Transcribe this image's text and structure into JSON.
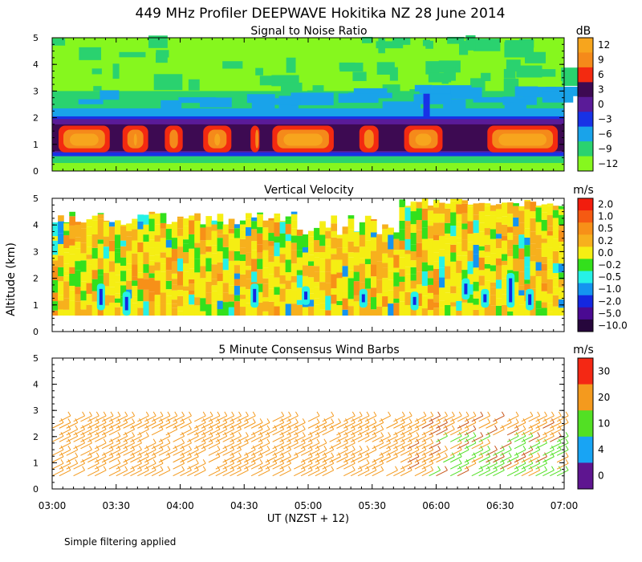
{
  "figure": {
    "title": "449 MHz Profiler DEEPWAVE Hokitika NZ 28 June 2014",
    "footer": "Simple filtering applied",
    "ylabel": "Altitude (km)",
    "xlabel": "UT  (NZST + 12)",
    "x_ticks": [
      "03:00",
      "03:30",
      "04:00",
      "04:30",
      "05:00",
      "05:30",
      "06:00",
      "06:30",
      "07:00"
    ],
    "y_ticks": [
      "0",
      "1",
      "2",
      "3",
      "4",
      "5"
    ]
  },
  "chart_data": [
    {
      "type": "heatmap",
      "title": "Signal to Noise Ratio",
      "unit": "dB",
      "xlim_hours_ut": [
        3.0,
        7.0
      ],
      "ylim_km": [
        0,
        5
      ],
      "colorbar": {
        "labels": [
          "12",
          "9",
          "6",
          "3",
          "0",
          "−3",
          "−6",
          "−9",
          "−12"
        ],
        "colors": [
          "#f7a51d",
          "#f58a1a",
          "#f32a10",
          "#3d0a52",
          "#5a1b98",
          "#1832e6",
          "#19a3ea",
          "#2ad26f",
          "#86f71e"
        ]
      },
      "layers": [
        {
          "name": "upper green region",
          "alt_km": [
            2.4,
            5.0
          ],
          "approx_dB": -10
        },
        {
          "name": "cyan layer",
          "alt_km": [
            2.1,
            2.8
          ],
          "approx_dB": -6
        },
        {
          "name": "dark purple band",
          "alt_km": [
            0.7,
            2.0
          ],
          "approx_dB": 1
        },
        {
          "name": "red/orange cores",
          "alt_km": [
            0.7,
            1.6
          ],
          "approx_dB": 9
        }
      ]
    },
    {
      "type": "heatmap",
      "title": "Vertical Velocity",
      "unit": "m/s",
      "xlim_hours_ut": [
        3.0,
        7.0
      ],
      "ylim_km": [
        0,
        5
      ],
      "colorbar": {
        "labels": [
          "2.0",
          "1.0",
          "0.5",
          "0.2",
          "0.0",
          "−0.2",
          "−0.5",
          "−1.0",
          "−2.0",
          "−5.0",
          "−10.0"
        ],
        "colors": [
          "#f21d0d",
          "#f55a12",
          "#f79018",
          "#f7b01d",
          "#f5ee13",
          "#33e01c",
          "#26f1e6",
          "#1494f0",
          "#1427e0",
          "#4a0a92",
          "#26063c"
        ]
      },
      "coverage_alt_km": [
        0.6,
        4.5
      ],
      "dominant_values_m_s": [
        0.0,
        0.2
      ]
    },
    {
      "type": "scatter",
      "title": "5 Minute Consensus Wind Barbs",
      "unit": "m/s",
      "xlim_hours_ut": [
        3.0,
        7.0
      ],
      "ylim_km": [
        0,
        5
      ],
      "colorbar": {
        "labels": [
          "30",
          "20",
          "10",
          "4",
          "0"
        ],
        "colors": [
          "#f42814",
          "#f49a1e",
          "#52e024",
          "#18a4f4",
          "#5e1590"
        ]
      },
      "barb_alt_range_km": [
        0.5,
        2.6
      ],
      "dominant_speed_m_s": [
        15,
        22
      ]
    }
  ]
}
